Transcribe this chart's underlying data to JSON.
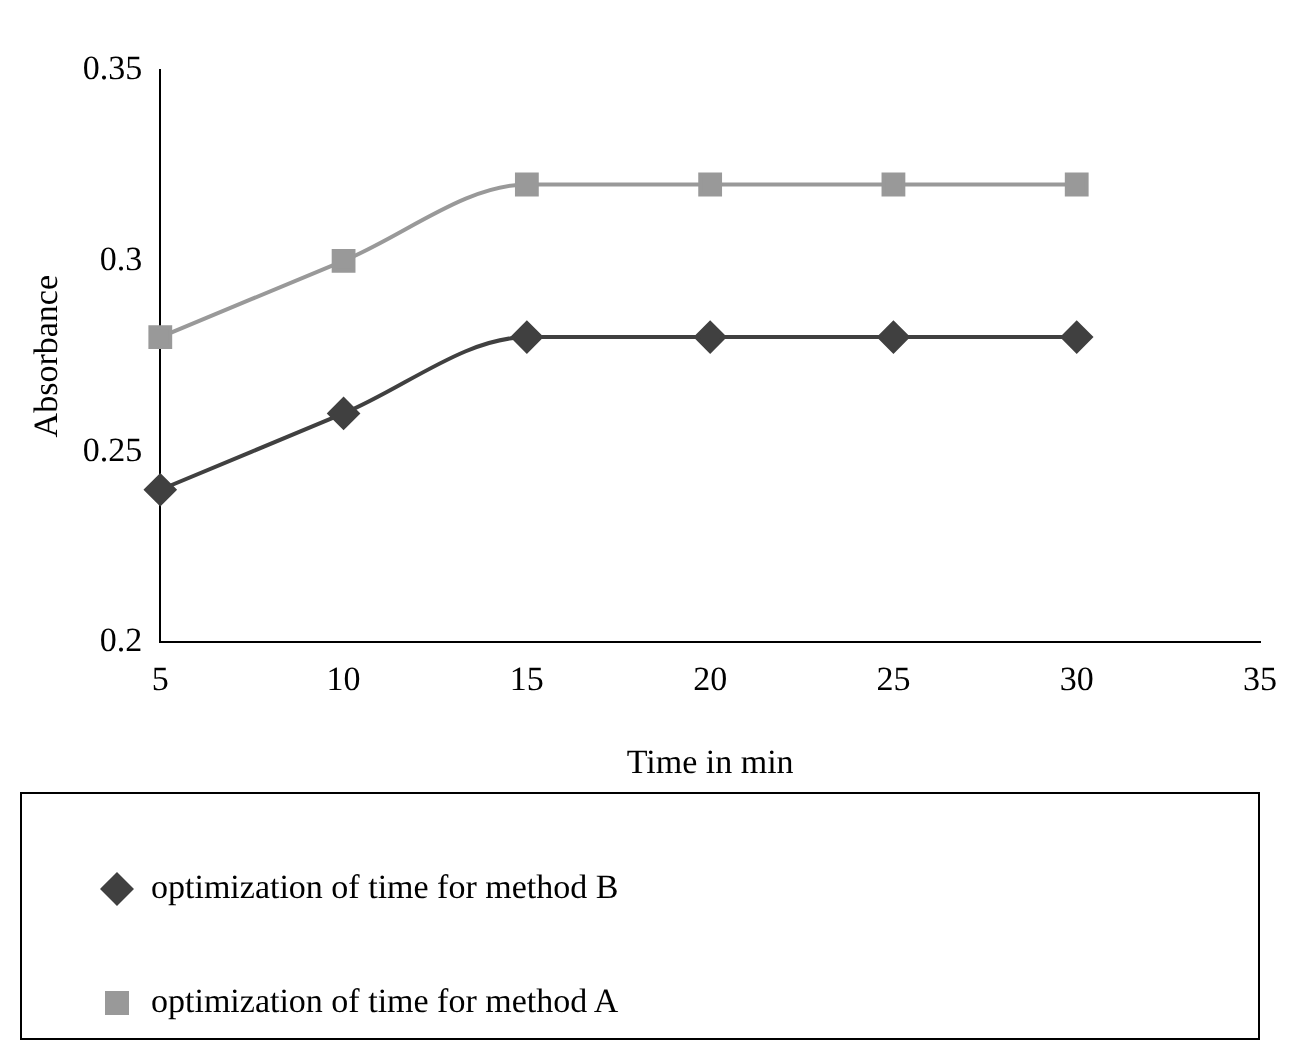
{
  "chart_data": {
    "type": "line",
    "xlabel": "Time in min",
    "ylabel": "Absorbance",
    "x": [
      5,
      10,
      15,
      20,
      25,
      30
    ],
    "series": [
      {
        "name": "optimization of time for method B",
        "color": "#404040",
        "marker": "diamond",
        "values": [
          0.24,
          0.26,
          0.28,
          0.28,
          0.28,
          0.28
        ]
      },
      {
        "name": "optimization of time for method A",
        "color": "#999999",
        "marker": "square",
        "values": [
          0.28,
          0.3,
          0.32,
          0.32,
          0.32,
          0.32
        ]
      }
    ],
    "xlim": [
      5,
      35
    ],
    "xticks": [
      5,
      10,
      15,
      20,
      25,
      30,
      35
    ],
    "ylim": [
      0.2,
      0.35
    ],
    "yticks": [
      0.2,
      0.25,
      0.3,
      0.35
    ],
    "grid": false,
    "legend": "bottom",
    "line_style": "solid"
  }
}
